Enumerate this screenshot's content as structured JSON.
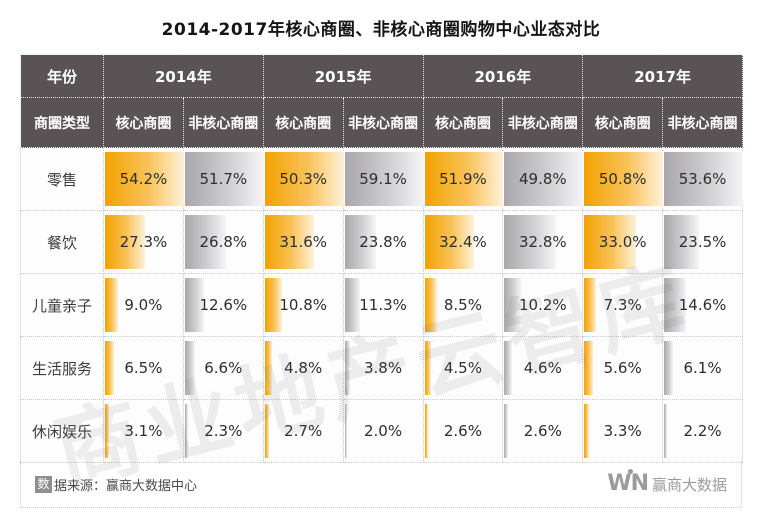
{
  "title": "2014-2017年核心商圈、非核心商圈购物中心业态对比",
  "watermark": "商业地产云智库",
  "table": {
    "year_header_label": "年份",
    "type_header_label": "商圈类型",
    "years": [
      "2014年",
      "2015年",
      "2016年",
      "2017年"
    ],
    "subheaders": [
      "核心商圈",
      "非核心商圈"
    ],
    "rows": [
      {
        "label": "零售",
        "values": [
          "54.2%",
          "51.7%",
          "50.3%",
          "59.1%",
          "51.9%",
          "49.8%",
          "50.8%",
          "53.6%"
        ]
      },
      {
        "label": "餐饮",
        "values": [
          "27.3%",
          "26.8%",
          "31.6%",
          "23.8%",
          "32.4%",
          "32.8%",
          "33.0%",
          "23.5%"
        ]
      },
      {
        "label": "儿童亲子",
        "values": [
          "9.0%",
          "12.6%",
          "10.8%",
          "11.3%",
          "8.5%",
          "10.2%",
          "7.3%",
          "14.6%"
        ]
      },
      {
        "label": "生活服务",
        "values": [
          "6.5%",
          "6.6%",
          "4.8%",
          "3.8%",
          "4.5%",
          "4.6%",
          "5.6%",
          "6.1%"
        ]
      },
      {
        "label": "休闲娱乐",
        "values": [
          "3.1%",
          "2.3%",
          "2.7%",
          "2.0%",
          "2.6%",
          "2.6%",
          "3.3%",
          "2.2%"
        ]
      }
    ]
  },
  "footer": {
    "source_icon_char": "数",
    "source_text": "据来源：赢商大数据中心",
    "logo_wn": "WN",
    "logo_cn": "赢商大数据"
  },
  "colors": {
    "header_bg": "#595356",
    "core_start": "#F3A100",
    "core_mid": "#F9C35A",
    "core_end": "#FDF1D9",
    "noncore_start": "#A9A7AA",
    "noncore_mid": "#CFCED0",
    "noncore_end": "#F5F4F6"
  },
  "chart_data": {
    "type": "table",
    "title": "2014-2017年核心商圈、非核心商圈购物中心业态对比",
    "row_header": "商圈类型",
    "col_header": "年份",
    "categories": [
      "零售",
      "餐饮",
      "儿童亲子",
      "生活服务",
      "休闲娱乐"
    ],
    "series": [
      {
        "name": "2014年 核心商圈",
        "values": [
          54.2,
          27.3,
          9.0,
          6.5,
          3.1
        ]
      },
      {
        "name": "2014年 非核心商圈",
        "values": [
          51.7,
          26.8,
          12.6,
          6.6,
          2.3
        ]
      },
      {
        "name": "2015年 核心商圈",
        "values": [
          50.3,
          31.6,
          10.8,
          4.8,
          2.7
        ]
      },
      {
        "name": "2015年 非核心商圈",
        "values": [
          59.1,
          23.8,
          11.3,
          3.8,
          2.0
        ]
      },
      {
        "name": "2016年 核心商圈",
        "values": [
          51.9,
          32.4,
          8.5,
          4.5,
          2.6
        ]
      },
      {
        "name": "2016年 非核心商圈",
        "values": [
          49.8,
          32.8,
          10.2,
          4.6,
          2.6
        ]
      },
      {
        "name": "2017年 核心商圈",
        "values": [
          50.8,
          33.0,
          7.3,
          5.6,
          3.3
        ]
      },
      {
        "name": "2017年 非核心商圈",
        "values": [
          53.6,
          23.5,
          14.6,
          6.1,
          2.2
        ]
      }
    ],
    "unit": "%",
    "bar_scaling": "each cell has a gradient data bar whose width is value / column max",
    "legend": {
      "core_color": "#F3A100",
      "noncore_color": "#A9A7AA"
    },
    "source": "数据来源：赢商大数据中心"
  }
}
